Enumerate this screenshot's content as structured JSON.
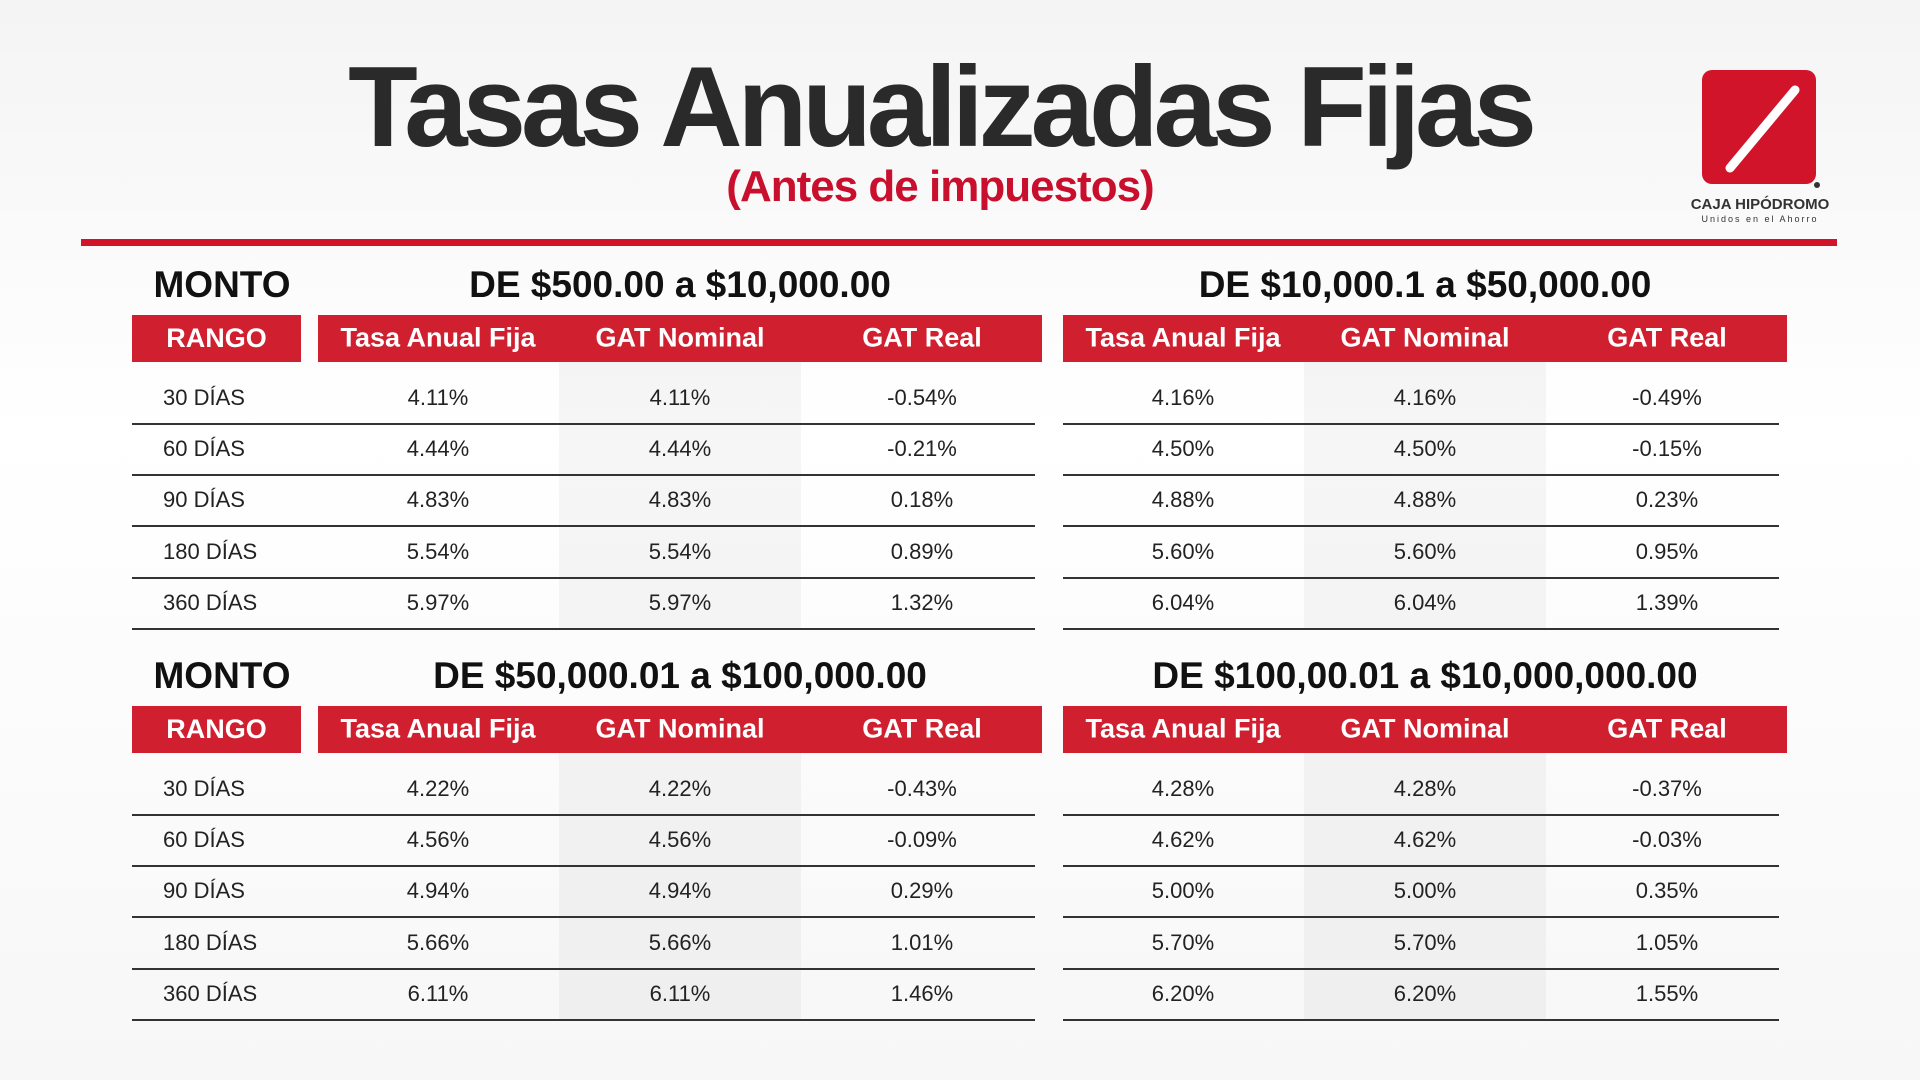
{
  "header": {
    "title": "Tasas Anualizadas Fijas",
    "subtitle": "(Antes de impuestos)"
  },
  "logo": {
    "name": "CAJA HIPÓDROMO",
    "tagline": "Unidos en el Ahorro"
  },
  "blocks": [
    {
      "monto": "MONTO",
      "rango": "RANGO",
      "plazos": [
        "30 DÍAS",
        "60 DÍAS",
        "90 DÍAS",
        "180 DÍAS",
        "360 DÍAS"
      ],
      "tables": [
        {
          "range": "DE $500.00 a $10,000.00",
          "columns": [
            "Tasa Anual Fija",
            "GAT Nominal",
            "GAT Real"
          ],
          "rows": [
            [
              "4.11%",
              "4.11%",
              "-0.54%"
            ],
            [
              "4.44%",
              "4.44%",
              "-0.21%"
            ],
            [
              "4.83%",
              "4.83%",
              "0.18%"
            ],
            [
              "5.54%",
              "5.54%",
              "0.89%"
            ],
            [
              "5.97%",
              "5.97%",
              "1.32%"
            ]
          ]
        },
        {
          "range": "DE $10,000.1 a $50,000.00",
          "columns": [
            "Tasa Anual Fija",
            "GAT Nominal",
            "GAT Real"
          ],
          "rows": [
            [
              "4.16%",
              "4.16%",
              "-0.49%"
            ],
            [
              "4.50%",
              "4.50%",
              "-0.15%"
            ],
            [
              "4.88%",
              "4.88%",
              "0.23%"
            ],
            [
              "5.60%",
              "5.60%",
              "0.95%"
            ],
            [
              "6.04%",
              "6.04%",
              "1.39%"
            ]
          ]
        }
      ]
    },
    {
      "monto": "MONTO",
      "rango": "RANGO",
      "plazos": [
        "30 DÍAS",
        "60 DÍAS",
        "90 DÍAS",
        "180 DÍAS",
        "360 DÍAS"
      ],
      "tables": [
        {
          "range": "DE $50,000.01 a $100,000.00",
          "columns": [
            "Tasa Anual Fija",
            "GAT Nominal",
            "GAT Real"
          ],
          "rows": [
            [
              "4.22%",
              "4.22%",
              "-0.43%"
            ],
            [
              "4.56%",
              "4.56%",
              "-0.09%"
            ],
            [
              "4.94%",
              "4.94%",
              "0.29%"
            ],
            [
              "5.66%",
              "5.66%",
              "1.01%"
            ],
            [
              "6.11%",
              "6.11%",
              "1.46%"
            ]
          ]
        },
        {
          "range": "DE $100,00.01 a $10,000,000.00",
          "columns": [
            "Tasa Anual Fija",
            "GAT Nominal",
            "GAT Real"
          ],
          "rows": [
            [
              "4.28%",
              "4.28%",
              "-0.37%"
            ],
            [
              "4.62%",
              "4.62%",
              "-0.03%"
            ],
            [
              "5.00%",
              "5.00%",
              "0.35%"
            ],
            [
              "5.70%",
              "5.70%",
              "1.05%"
            ],
            [
              "6.20%",
              "6.20%",
              "1.55%"
            ]
          ]
        }
      ]
    }
  ]
}
